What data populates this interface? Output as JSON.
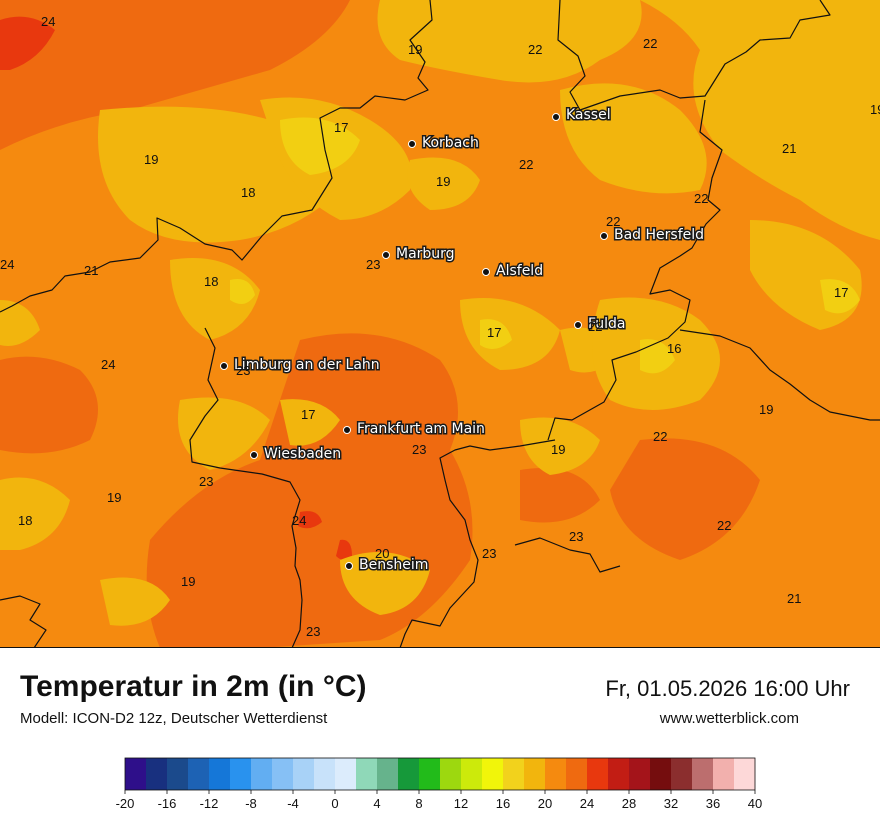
{
  "header": {
    "title": "Temperatur in 2m (in °C)",
    "subtitle": "Modell: ICON-D2 12z, Deutscher Wetterdienst",
    "datetime": "Fr, 01.05.2026 16:00 Uhr",
    "website": "www.wetterblick.com"
  },
  "colors": {
    "warm_base": "#f58a0f",
    "hot": "#ef6a10",
    "mild": "#f2b50d",
    "cool": "#f2cf12",
    "very_hot": "#e8380e",
    "border": "#111111"
  },
  "cities": [
    {
      "name": "Kassel"
    },
    {
      "name": "Korbach"
    },
    {
      "name": "Bad Hersfeld"
    },
    {
      "name": "Marburg"
    },
    {
      "name": "Alsfeld"
    },
    {
      "name": "Fulda"
    },
    {
      "name": "Limburg an der Lahn"
    },
    {
      "name": "Frankfurt am Main"
    },
    {
      "name": "Wiesbaden"
    },
    {
      "name": "Bensheim"
    }
  ],
  "values": [
    "24",
    "19",
    "22",
    "22",
    "17",
    "19",
    "22",
    "19",
    "18",
    "19",
    "21",
    "22",
    "22",
    "24",
    "21",
    "23",
    "18",
    "17",
    "22",
    "17",
    "16",
    "24",
    "23",
    "17",
    "19",
    "22",
    "23",
    "19",
    "23",
    "24",
    "18",
    "23",
    "23",
    "20",
    "22",
    "19",
    "21",
    "23",
    "19"
  ],
  "legend": {
    "colors": [
      "#2e0f8a",
      "#18307f",
      "#1b4a8c",
      "#1d62b4",
      "#1577d8",
      "#2992ee",
      "#62aef2",
      "#86c0f5",
      "#a8d2f7",
      "#c8e2fa",
      "#dcecfc",
      "#8fd8b8",
      "#66b38c",
      "#16993a",
      "#22bb1a",
      "#9dd80f",
      "#ccea0b",
      "#f1f50a",
      "#f2d21c",
      "#f2b50d",
      "#f58a0f",
      "#ef6a10",
      "#e8380e",
      "#c21d14",
      "#a4141a",
      "#750d0e",
      "#8b2e2e",
      "#bc6e6e",
      "#f2b0ad",
      "#fdd8d8"
    ],
    "ticks": [
      "-20",
      "-16",
      "-12",
      "-8",
      "-4",
      "0",
      "4",
      "8",
      "12",
      "16",
      "20",
      "24",
      "28",
      "32",
      "36",
      "40"
    ]
  }
}
